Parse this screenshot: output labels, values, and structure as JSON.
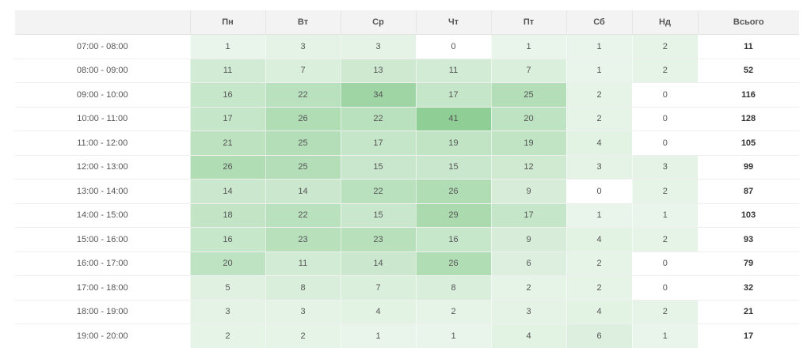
{
  "colors": {
    "heat_low": "#ffffff",
    "heat_high": "#8fce95",
    "header_bg": "#f3f3f3"
  },
  "chart_data": {
    "type": "heatmap",
    "corner_label": "",
    "columns": [
      "Пн",
      "Вт",
      "Ср",
      "Чт",
      "Пт",
      "Сб",
      "Нд"
    ],
    "total_label": "Всього",
    "rows": [
      {
        "label": "07:00 - 08:00",
        "values": [
          1,
          3,
          3,
          0,
          1,
          1,
          2
        ],
        "total": 11
      },
      {
        "label": "08:00 - 09:00",
        "values": [
          11,
          7,
          13,
          11,
          7,
          1,
          2
        ],
        "total": 52
      },
      {
        "label": "09:00 - 10:00",
        "values": [
          16,
          22,
          34,
          17,
          25,
          2,
          0
        ],
        "total": 116
      },
      {
        "label": "10:00 - 11:00",
        "values": [
          17,
          26,
          22,
          41,
          20,
          2,
          0
        ],
        "total": 128
      },
      {
        "label": "11:00 - 12:00",
        "values": [
          21,
          25,
          17,
          19,
          19,
          4,
          0
        ],
        "total": 105
      },
      {
        "label": "12:00 - 13:00",
        "values": [
          26,
          25,
          15,
          15,
          12,
          3,
          3
        ],
        "total": 99
      },
      {
        "label": "13:00 - 14:00",
        "values": [
          14,
          14,
          22,
          26,
          9,
          0,
          2
        ],
        "total": 87
      },
      {
        "label": "14:00 - 15:00",
        "values": [
          18,
          22,
          15,
          29,
          17,
          1,
          1
        ],
        "total": 103
      },
      {
        "label": "15:00 - 16:00",
        "values": [
          16,
          23,
          23,
          16,
          9,
          4,
          2
        ],
        "total": 93
      },
      {
        "label": "16:00 - 17:00",
        "values": [
          20,
          11,
          14,
          26,
          6,
          2,
          0
        ],
        "total": 79
      },
      {
        "label": "17:00 - 18:00",
        "values": [
          5,
          8,
          7,
          8,
          2,
          2,
          0
        ],
        "total": 32
      },
      {
        "label": "18:00 - 19:00",
        "values": [
          3,
          3,
          4,
          2,
          3,
          4,
          2
        ],
        "total": 21
      },
      {
        "label": "19:00 - 20:00",
        "values": [
          2,
          2,
          1,
          1,
          4,
          6,
          1
        ],
        "total": 17
      }
    ]
  }
}
